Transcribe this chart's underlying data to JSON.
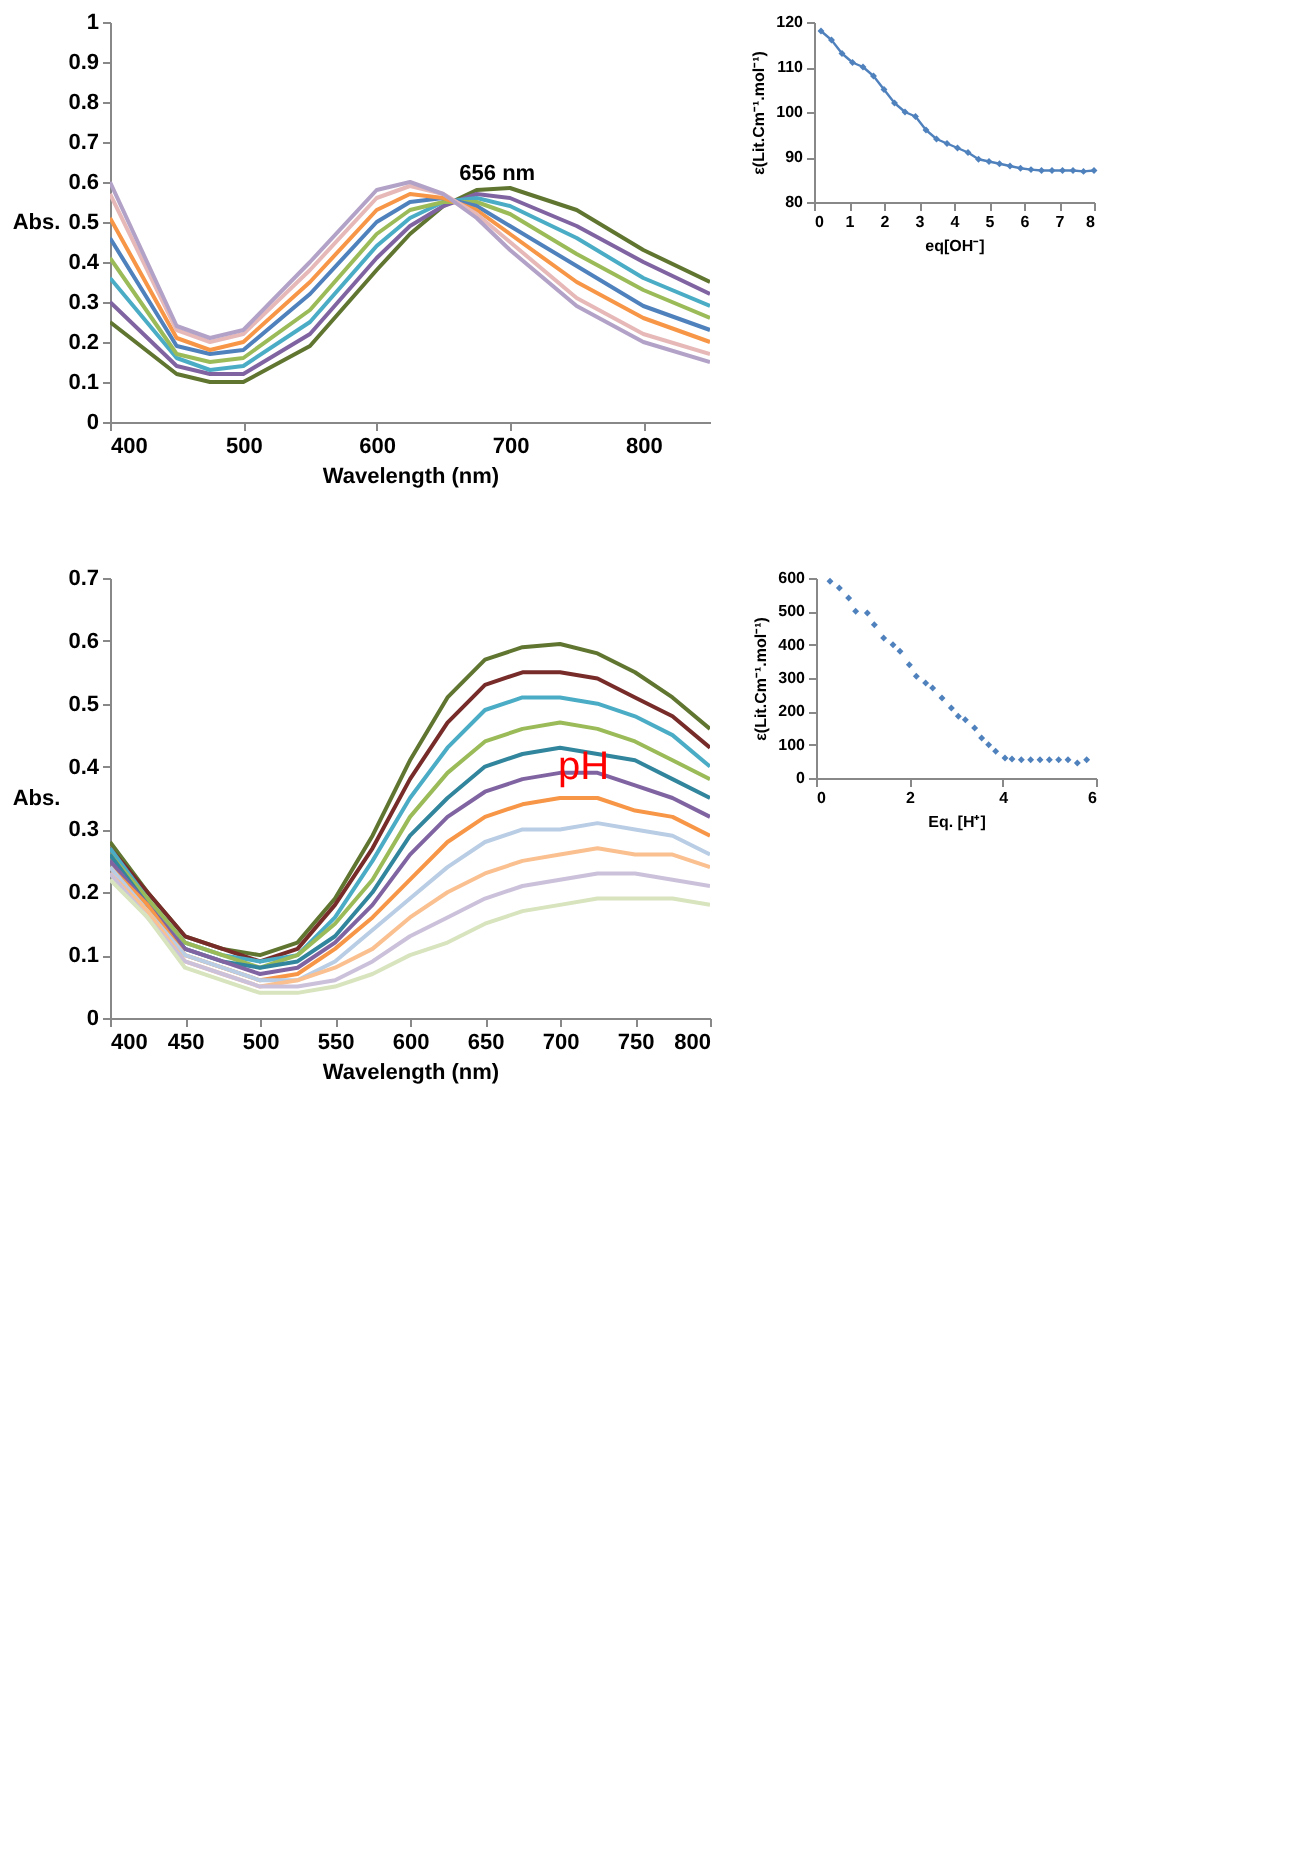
{
  "chart_data": [
    {
      "type": "line",
      "xlabel": "Wavelength (nm)",
      "ylabel": "Abs.",
      "xlim": [
        400,
        850
      ],
      "ylim": [
        0,
        1
      ],
      "xticks": [
        400,
        500,
        600,
        700,
        800
      ],
      "yticks": [
        0,
        0.1,
        0.2,
        0.3,
        0.4,
        0.5,
        0.6,
        0.7,
        0.8,
        0.9,
        1
      ],
      "grid": false,
      "legend": false,
      "marker": "none",
      "line_style": "solid",
      "x": [
        400,
        450,
        475,
        500,
        550,
        600,
        625,
        650,
        675,
        700,
        750,
        800,
        850
      ],
      "annotations": [
        {
          "text": "656 nm",
          "x": 656,
          "y": 0.56
        }
      ],
      "series": [
        {
          "color": "#5f7530",
          "values": [
            0.25,
            0.12,
            0.1,
            0.1,
            0.19,
            0.38,
            0.47,
            0.54,
            0.58,
            0.585,
            0.53,
            0.43,
            0.35
          ]
        },
        {
          "color": "#8064a2",
          "values": [
            0.3,
            0.14,
            0.12,
            0.12,
            0.22,
            0.41,
            0.49,
            0.54,
            0.57,
            0.56,
            0.49,
            0.4,
            0.32
          ]
        },
        {
          "color": "#4bacc6",
          "values": [
            0.36,
            0.16,
            0.13,
            0.14,
            0.25,
            0.44,
            0.51,
            0.55,
            0.56,
            0.54,
            0.46,
            0.36,
            0.29
          ]
        },
        {
          "color": "#9bbb59",
          "values": [
            0.41,
            0.17,
            0.15,
            0.16,
            0.28,
            0.47,
            0.53,
            0.55,
            0.55,
            0.52,
            0.42,
            0.33,
            0.26
          ]
        },
        {
          "color": "#4f81bd",
          "values": [
            0.46,
            0.19,
            0.17,
            0.18,
            0.32,
            0.5,
            0.55,
            0.56,
            0.54,
            0.49,
            0.39,
            0.29,
            0.23
          ]
        },
        {
          "color": "#f79646",
          "values": [
            0.51,
            0.21,
            0.18,
            0.2,
            0.35,
            0.53,
            0.57,
            0.56,
            0.53,
            0.47,
            0.35,
            0.26,
            0.2
          ]
        },
        {
          "color": "#e6b9b8",
          "values": [
            0.57,
            0.23,
            0.2,
            0.22,
            0.38,
            0.56,
            0.59,
            0.57,
            0.52,
            0.45,
            0.31,
            0.22,
            0.17
          ]
        },
        {
          "color": "#b3a2c7",
          "values": [
            0.6,
            0.24,
            0.21,
            0.23,
            0.4,
            0.58,
            0.6,
            0.57,
            0.51,
            0.43,
            0.29,
            0.2,
            0.15
          ]
        }
      ]
    },
    {
      "type": "line",
      "xlabel": "eq[OH⁻]",
      "ylabel": "ε(Lit.Cm⁻¹.mol⁻¹)",
      "xlim": [
        0,
        8
      ],
      "ylim": [
        80,
        120
      ],
      "xticks": [
        0,
        1,
        2,
        3,
        4,
        5,
        6,
        7,
        8
      ],
      "yticks": [
        80,
        90,
        100,
        110,
        120
      ],
      "grid": false,
      "legend": false,
      "marker": "diamond",
      "line_style": "solid",
      "x": [
        0.2,
        0.5,
        0.8,
        1.1,
        1.4,
        1.7,
        2.0,
        2.3,
        2.6,
        2.9,
        3.2,
        3.5,
        3.8,
        4.1,
        4.4,
        4.7,
        5.0,
        5.3,
        5.6,
        5.9,
        6.2,
        6.5,
        6.8,
        7.1,
        7.4,
        7.7,
        8.0
      ],
      "series": [
        {
          "color": "#4f81bd",
          "values": [
            118,
            116,
            113,
            111,
            110,
            108,
            105,
            102,
            100,
            99,
            96,
            94,
            93,
            92,
            91,
            89.5,
            89,
            88.5,
            88,
            87.5,
            87.2,
            87,
            87,
            87,
            87,
            86.8,
            87
          ]
        }
      ]
    },
    {
      "type": "line",
      "xlabel": "Wavelength (nm)",
      "ylabel": "Abs.",
      "xlim": [
        400,
        800
      ],
      "ylim": [
        0,
        0.7
      ],
      "xticks": [
        400,
        450,
        500,
        550,
        600,
        650,
        700,
        750,
        800
      ],
      "yticks": [
        0,
        0.1,
        0.2,
        0.3,
        0.4,
        0.5,
        0.6,
        0.7
      ],
      "grid": false,
      "legend": false,
      "marker": "none",
      "line_style": "solid",
      "x": [
        400,
        425,
        450,
        475,
        500,
        525,
        550,
        575,
        600,
        625,
        650,
        675,
        700,
        725,
        750,
        775,
        800
      ],
      "annotations": [
        {
          "text": "pH",
          "x": 705,
          "y": 0.4
        }
      ],
      "series": [
        {
          "color": "#5f7530",
          "values": [
            0.28,
            0.2,
            0.13,
            0.11,
            0.1,
            0.12,
            0.19,
            0.29,
            0.41,
            0.51,
            0.57,
            0.59,
            0.595,
            0.58,
            0.55,
            0.51,
            0.46
          ]
        },
        {
          "color": "#772c2a",
          "values": [
            0.27,
            0.2,
            0.13,
            0.11,
            0.09,
            0.11,
            0.18,
            0.27,
            0.38,
            0.47,
            0.53,
            0.55,
            0.55,
            0.54,
            0.51,
            0.48,
            0.43
          ]
        },
        {
          "color": "#4bacc6",
          "values": [
            0.27,
            0.19,
            0.12,
            0.1,
            0.09,
            0.1,
            0.16,
            0.25,
            0.35,
            0.43,
            0.49,
            0.51,
            0.51,
            0.5,
            0.48,
            0.45,
            0.4
          ]
        },
        {
          "color": "#9bbb59",
          "values": [
            0.26,
            0.19,
            0.12,
            0.1,
            0.08,
            0.1,
            0.15,
            0.22,
            0.32,
            0.39,
            0.44,
            0.46,
            0.47,
            0.46,
            0.44,
            0.41,
            0.38
          ]
        },
        {
          "color": "#31859c",
          "values": [
            0.26,
            0.18,
            0.11,
            0.09,
            0.08,
            0.09,
            0.13,
            0.2,
            0.29,
            0.35,
            0.4,
            0.42,
            0.43,
            0.42,
            0.41,
            0.38,
            0.35
          ]
        },
        {
          "color": "#8064a2",
          "values": [
            0.25,
            0.18,
            0.11,
            0.09,
            0.07,
            0.08,
            0.12,
            0.18,
            0.26,
            0.32,
            0.36,
            0.38,
            0.39,
            0.39,
            0.37,
            0.35,
            0.32
          ]
        },
        {
          "color": "#f79646",
          "values": [
            0.24,
            0.18,
            0.1,
            0.08,
            0.06,
            0.07,
            0.11,
            0.16,
            0.22,
            0.28,
            0.32,
            0.34,
            0.35,
            0.35,
            0.33,
            0.32,
            0.29
          ]
        },
        {
          "color": "#b9cde5",
          "values": [
            0.24,
            0.17,
            0.1,
            0.08,
            0.06,
            0.06,
            0.09,
            0.14,
            0.19,
            0.24,
            0.28,
            0.3,
            0.3,
            0.31,
            0.3,
            0.29,
            0.26
          ]
        },
        {
          "color": "#fac090",
          "values": [
            0.23,
            0.17,
            0.09,
            0.07,
            0.05,
            0.06,
            0.08,
            0.11,
            0.16,
            0.2,
            0.23,
            0.25,
            0.26,
            0.27,
            0.26,
            0.26,
            0.24
          ]
        },
        {
          "color": "#ccc1da",
          "values": [
            0.23,
            0.16,
            0.09,
            0.07,
            0.05,
            0.05,
            0.06,
            0.09,
            0.13,
            0.16,
            0.19,
            0.21,
            0.22,
            0.23,
            0.23,
            0.22,
            0.21
          ]
        },
        {
          "color": "#d7e4bd",
          "values": [
            0.22,
            0.16,
            0.08,
            0.06,
            0.04,
            0.04,
            0.05,
            0.07,
            0.1,
            0.12,
            0.15,
            0.17,
            0.18,
            0.19,
            0.19,
            0.19,
            0.18
          ]
        }
      ]
    },
    {
      "type": "scatter",
      "xlabel": "Eq. [H⁺]",
      "ylabel": "ε(Lit.Cm⁻¹.mol⁻¹)",
      "xlim": [
        0,
        6
      ],
      "ylim": [
        0,
        600
      ],
      "xticks": [
        0,
        2,
        4,
        6
      ],
      "yticks": [
        0,
        100,
        200,
        300,
        400,
        500,
        600
      ],
      "grid": false,
      "legend": false,
      "marker": "diamond",
      "x": [
        0.3,
        0.5,
        0.7,
        0.85,
        1.1,
        1.25,
        1.45,
        1.65,
        1.8,
        2.0,
        2.15,
        2.35,
        2.5,
        2.7,
        2.9,
        3.05,
        3.2,
        3.4,
        3.55,
        3.7,
        3.85,
        4.05,
        4.2,
        4.4,
        4.6,
        4.8,
        5.0,
        5.2,
        5.4,
        5.6,
        5.8
      ],
      "series": [
        {
          "color": "#4f81bd",
          "values": [
            590,
            570,
            540,
            500,
            495,
            460,
            420,
            400,
            380,
            340,
            305,
            285,
            270,
            240,
            210,
            185,
            175,
            150,
            120,
            100,
            80,
            60,
            57,
            55,
            55,
            55,
            55,
            55,
            55,
            45,
            55
          ]
        }
      ]
    }
  ]
}
